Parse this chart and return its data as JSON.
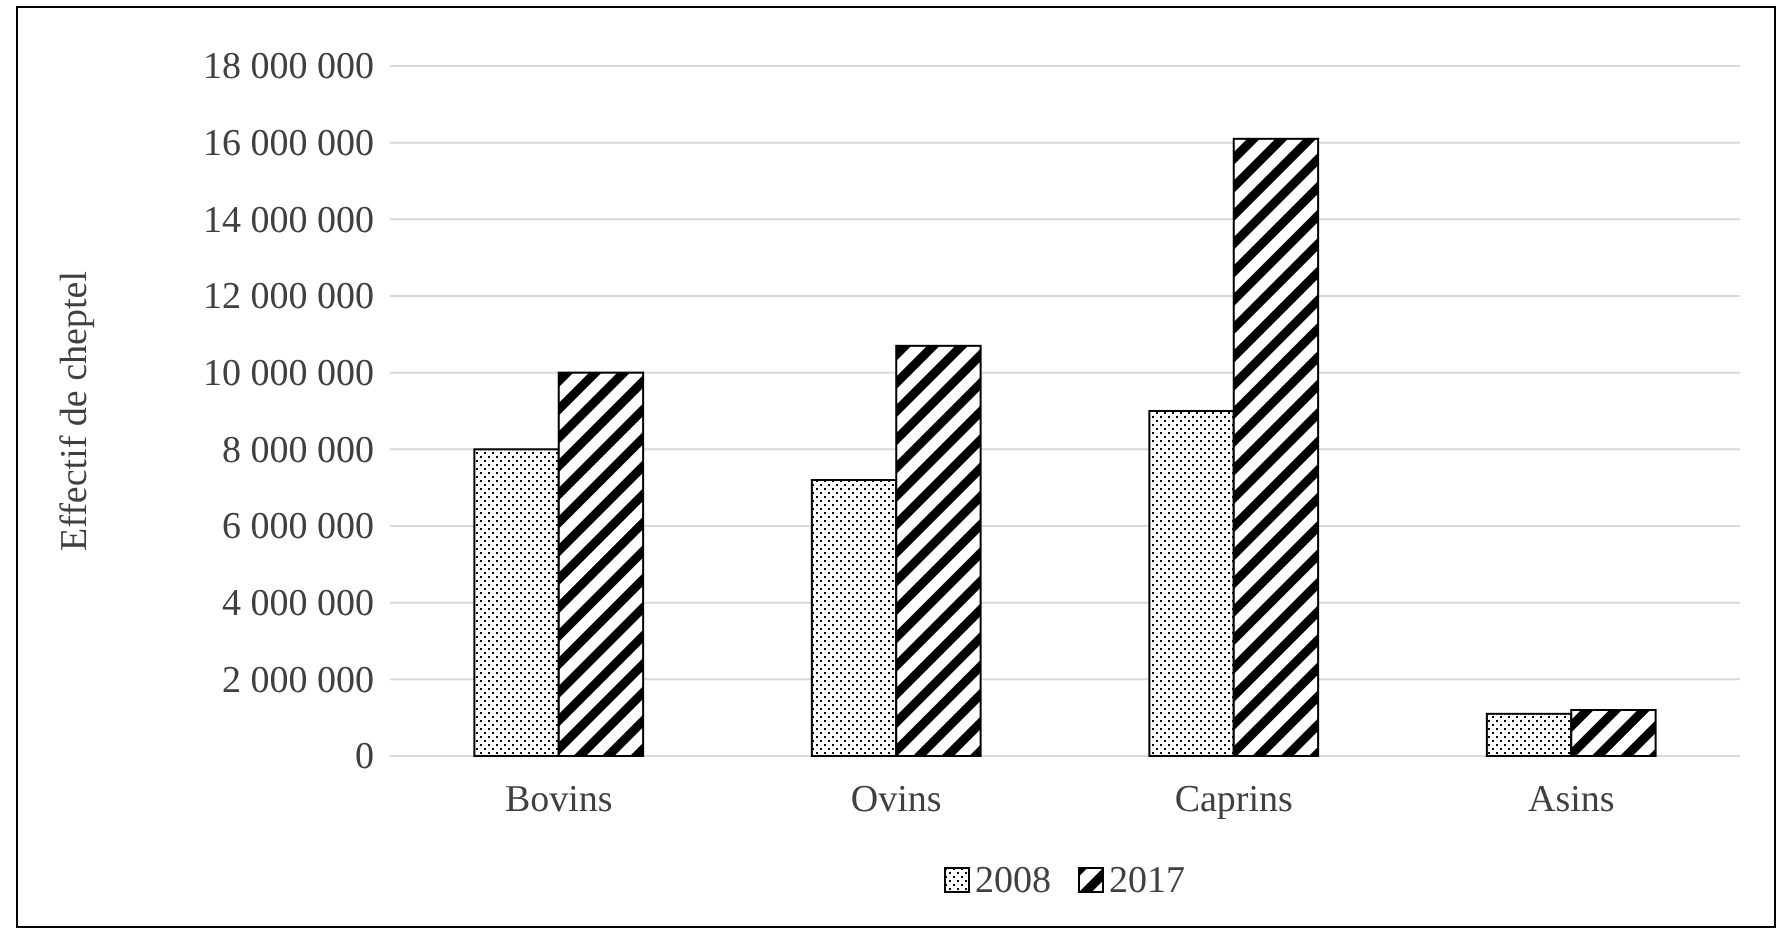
{
  "chart_data": {
    "type": "bar",
    "ylabel": "Effectif de cheptel",
    "categories": [
      "Bovins",
      "Ovins",
      "Caprins",
      "Asins"
    ],
    "series": [
      {
        "name": "2008",
        "color": "#000000",
        "values": [
          8000000,
          7200000,
          9000000,
          1100000
        ]
      },
      {
        "name": "2017",
        "color": "#000000",
        "values": [
          10000000,
          10700000,
          16100000,
          1200000
        ]
      }
    ],
    "ylim": [
      0,
      18000000
    ],
    "yticks": [
      {
        "value": 0,
        "label": "0"
      },
      {
        "value": 2000000,
        "label": "2 000 000"
      },
      {
        "value": 4000000,
        "label": "4 000 000"
      },
      {
        "value": 6000000,
        "label": "6 000 000"
      },
      {
        "value": 8000000,
        "label": "8 000 000"
      },
      {
        "value": 10000000,
        "label": "10 000 000"
      },
      {
        "value": 12000000,
        "label": "12 000 000"
      },
      {
        "value": 14000000,
        "label": "14 000 000"
      },
      {
        "value": 16000000,
        "label": "16 000 000"
      },
      {
        "value": 18000000,
        "label": "18 000 000"
      }
    ],
    "grid": "y",
    "legend": "bottom"
  }
}
